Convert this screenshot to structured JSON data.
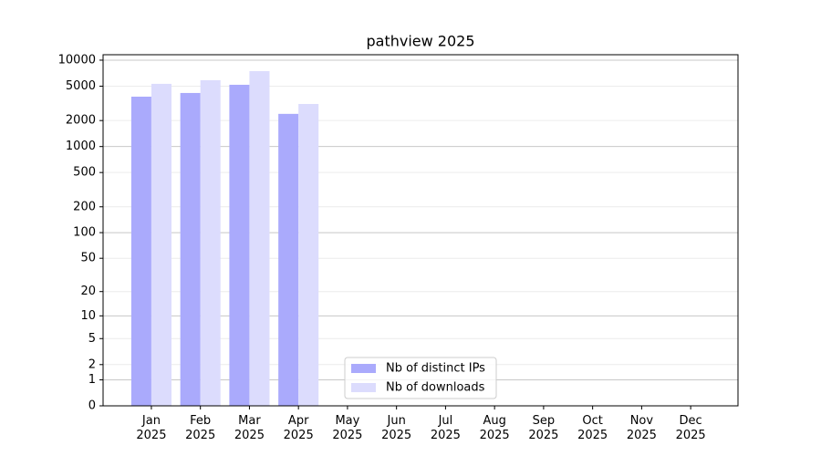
{
  "chart_data": {
    "type": "bar",
    "title": "pathview 2025",
    "categories": [
      "Jan 2025",
      "Feb 2025",
      "Mar 2025",
      "Apr 2025",
      "May 2025",
      "Jun 2025",
      "Jul 2025",
      "Aug 2025",
      "Sep 2025",
      "Oct 2025",
      "Nov 2025",
      "Dec 2025"
    ],
    "series": [
      {
        "name": "Nb of distinct IPs",
        "color": "#aaaafc",
        "values": [
          3780,
          4170,
          5190,
          2390,
          null,
          null,
          null,
          null,
          null,
          null,
          null,
          null
        ]
      },
      {
        "name": "Nb of downloads",
        "color": "#dcdcfd",
        "values": [
          5320,
          5860,
          7470,
          3110,
          null,
          null,
          null,
          null,
          null,
          null,
          null,
          null
        ]
      }
    ],
    "yscale": "log1p",
    "ylim": [
      0,
      11560
    ],
    "yticks": [
      0,
      1,
      2,
      5,
      10,
      20,
      50,
      100,
      200,
      500,
      1000,
      2000,
      5000,
      10000
    ],
    "grid": true,
    "legend": "lower center"
  }
}
